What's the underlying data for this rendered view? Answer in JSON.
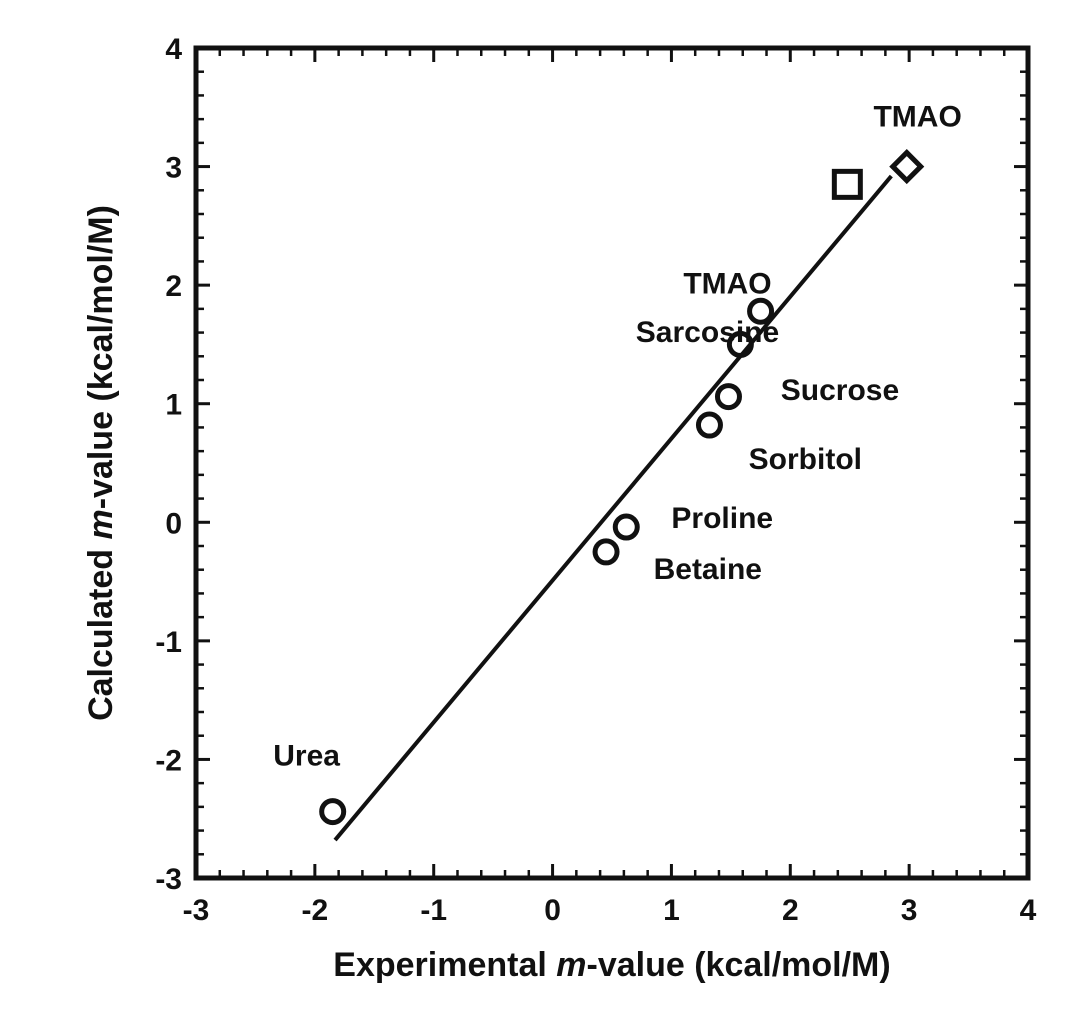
{
  "chart_data": {
    "type": "scatter",
    "title": "",
    "xlabel": "Experimental m-value (kcal/mol/M)",
    "ylabel": "Calculated m-value (kcal/mol/M)",
    "xlim": [
      -3,
      4
    ],
    "ylim": [
      -3,
      4
    ],
    "x_ticks": [
      -3,
      -2,
      -1,
      0,
      1,
      2,
      3,
      4
    ],
    "y_ticks": [
      -3,
      -2,
      -1,
      0,
      1,
      2,
      3,
      4
    ],
    "grid": false,
    "legend": "none",
    "fit_line": {
      "x": [
        -1.83,
        2.85
      ],
      "y": [
        -2.68,
        2.92
      ]
    },
    "series": [
      {
        "marker": "circle",
        "points": [
          {
            "x": -1.85,
            "y": -2.44
          },
          {
            "x": 0.45,
            "y": -0.25
          },
          {
            "x": 0.62,
            "y": -0.04
          },
          {
            "x": 1.32,
            "y": 0.82
          },
          {
            "x": 1.48,
            "y": 1.06
          },
          {
            "x": 1.58,
            "y": 1.5
          },
          {
            "x": 1.75,
            "y": 1.78
          }
        ]
      },
      {
        "marker": "square",
        "points": [
          {
            "x": 2.48,
            "y": 2.85
          }
        ]
      },
      {
        "marker": "diamond",
        "points": [
          {
            "x": 2.98,
            "y": 3.0
          }
        ]
      }
    ],
    "annotations": [
      {
        "text": "Urea",
        "x": -2.35,
        "y": -2.05
      },
      {
        "text": "Proline",
        "x": 1.0,
        "y": -0.05
      },
      {
        "text": "Betaine",
        "x": 0.85,
        "y": -0.48
      },
      {
        "text": "Sorbitol",
        "x": 1.65,
        "y": 0.45
      },
      {
        "text": "Sucrose",
        "x": 1.92,
        "y": 1.03
      },
      {
        "text": "Sarcosine",
        "x": 0.7,
        "y": 1.52
      },
      {
        "text": "TMAO",
        "x": 1.1,
        "y": 1.93
      },
      {
        "text": "TMAO",
        "x": 2.7,
        "y": 3.34
      }
    ],
    "xlabel_parts": {
      "italic": "m",
      "before": "Experimental ",
      "after": "-value (kcal/mol/M)"
    },
    "ylabel_parts": {
      "italic": "m",
      "before": "Calculated ",
      "after": "-value (kcal/mol/M)"
    }
  }
}
